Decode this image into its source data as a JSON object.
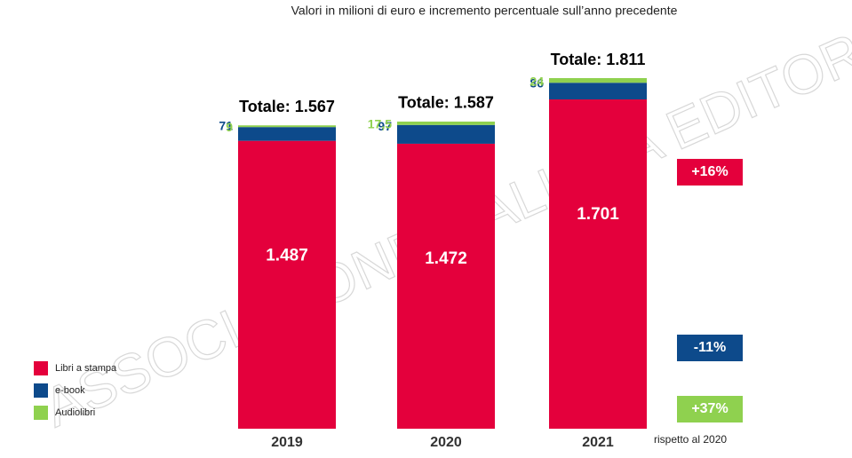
{
  "chart_data": {
    "type": "stacked_bar",
    "subtitle": "Valori in milioni di euro e incremento percentuale sull’anno precedente",
    "watermark": "ASSOCIAZIONE ITALIANA EDITORI",
    "categories": [
      "2019",
      "2020",
      "2021"
    ],
    "series": [
      {
        "name": "Libri a stampa",
        "color": "#e4003c",
        "values": [
          1487,
          1472,
          1701
        ],
        "value_labels": [
          "1.487",
          "1.472",
          "1.701"
        ],
        "change": "+16%"
      },
      {
        "name": "e-book",
        "color": "#0d4a8b",
        "values": [
          71,
          97,
          86
        ],
        "change": "-11%"
      },
      {
        "name": "Audiolibri",
        "color": "#8fd14f",
        "values": [
          9,
          17.5,
          24
        ],
        "value_labels": [
          "9",
          "17,5",
          "24"
        ],
        "change": "+37%"
      }
    ],
    "totals": [
      1567,
      1587,
      1811
    ],
    "total_labels": [
      "Totale: 1.567",
      "Totale: 1.587",
      "Totale: 1.811"
    ],
    "change_note": "rispetto al 2020"
  }
}
